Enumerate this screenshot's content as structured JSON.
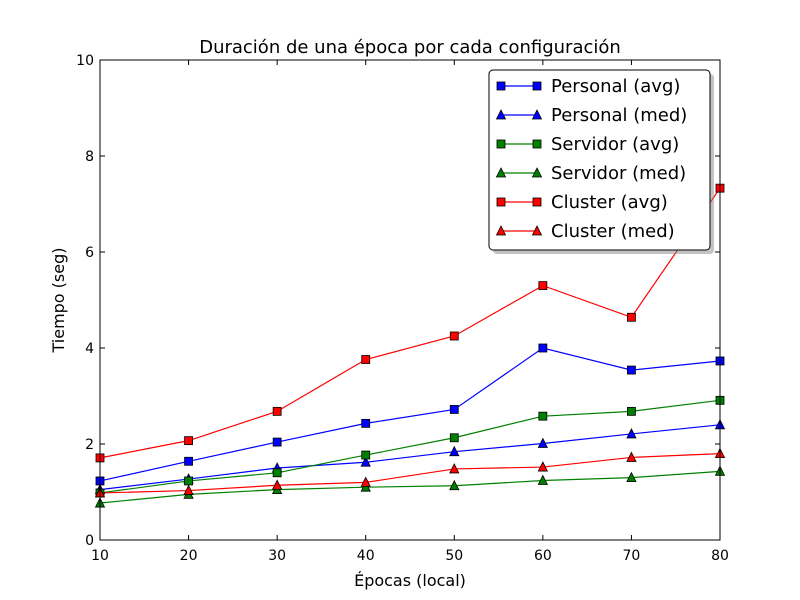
{
  "chart_data": {
    "type": "line",
    "title": "Duración de una época por cada configuración",
    "xlabel": "Épocas (local)",
    "ylabel": "Tiempo (seg)",
    "xlim": [
      10,
      80
    ],
    "ylim": [
      0,
      10
    ],
    "xticks": [
      "10",
      "20",
      "30",
      "40",
      "50",
      "60",
      "70",
      "80"
    ],
    "yticks": [
      "0",
      "2",
      "4",
      "6",
      "8",
      "10"
    ],
    "grid": false,
    "legend_position": "top-right",
    "x": [
      10,
      20,
      30,
      40,
      50,
      60,
      70,
      80
    ],
    "series": [
      {
        "name": "Personal (avg)",
        "color": "#0000ff",
        "marker": "square",
        "values": [
          1.23,
          1.64,
          2.04,
          2.43,
          2.72,
          4.0,
          3.54,
          3.73
        ]
      },
      {
        "name": "Personal (med)",
        "color": "#0000ff",
        "marker": "triangle",
        "values": [
          1.05,
          1.27,
          1.5,
          1.62,
          1.84,
          2.01,
          2.21,
          2.4
        ]
      },
      {
        "name": "Servidor (avg)",
        "color": "#008000",
        "marker": "square",
        "values": [
          0.98,
          1.23,
          1.4,
          1.77,
          2.13,
          2.58,
          2.68,
          2.91
        ]
      },
      {
        "name": "Servidor (med)",
        "color": "#008000",
        "marker": "triangle",
        "values": [
          0.77,
          0.95,
          1.05,
          1.1,
          1.13,
          1.24,
          1.3,
          1.43
        ]
      },
      {
        "name": "Cluster (avg)",
        "color": "#ff0000",
        "marker": "square",
        "values": [
          1.71,
          2.07,
          2.68,
          3.76,
          4.25,
          5.3,
          4.64,
          7.33
        ]
      },
      {
        "name": "Cluster (med)",
        "color": "#ff0000",
        "marker": "triangle",
        "values": [
          0.98,
          1.03,
          1.14,
          1.2,
          1.48,
          1.52,
          1.72,
          1.8
        ]
      }
    ]
  }
}
